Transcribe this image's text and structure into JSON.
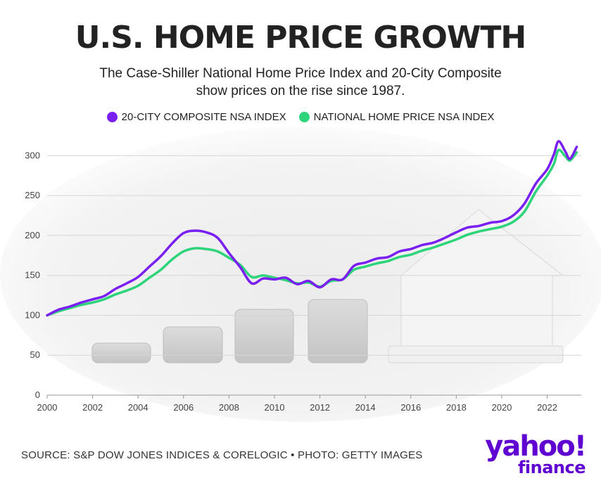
{
  "header": {
    "title": "U.S. HOME PRICE GROWTH",
    "subtitle": "The Case-Shiller National Home Price Index and 20-City Composite show prices on the rise since 1987."
  },
  "footer": {
    "source": "SOURCE: S&P DOW JONES INDICES & CORELOGIC • PHOTO: GETTY IMAGES",
    "logo_main": "yahoo!",
    "logo_sub": "finance"
  },
  "colors": {
    "composite": "#7a1ff2",
    "national": "#2ed47a",
    "brand": "#5f01d1"
  },
  "chart_data": {
    "type": "line",
    "xlabel": "",
    "ylabel": "",
    "xlim": [
      2000,
      2023.5
    ],
    "ylim": [
      0,
      325
    ],
    "xticks": [
      "2000",
      "2002",
      "2004",
      "2006",
      "2008",
      "2010",
      "2012",
      "2014",
      "2016",
      "2018",
      "2020",
      "2022"
    ],
    "yticks": [
      "0",
      "50",
      "100",
      "150",
      "200",
      "250",
      "300"
    ],
    "legend_position": "top",
    "grid": "horizontal",
    "series": [
      {
        "name": "20-CITY COMPOSITE NSA INDEX",
        "color": "#7a1ff2",
        "x": [
          2000,
          2000.5,
          2001,
          2001.5,
          2002,
          2002.5,
          2003,
          2003.5,
          2004,
          2004.5,
          2005,
          2005.5,
          2006,
          2006.5,
          2007,
          2007.5,
          2008,
          2008.5,
          2009,
          2009.5,
          2010,
          2010.5,
          2011,
          2011.5,
          2012,
          2012.5,
          2013,
          2013.5,
          2014,
          2014.5,
          2015,
          2015.5,
          2016,
          2016.5,
          2017,
          2017.5,
          2018,
          2018.5,
          2019,
          2019.5,
          2020,
          2020.5,
          2021,
          2021.5,
          2022,
          2022.3,
          2022.5,
          2022.8,
          2023,
          2023.3
        ],
        "y": [
          100,
          107,
          111,
          116,
          120,
          124,
          133,
          140,
          148,
          161,
          174,
          190,
          203,
          206,
          204,
          197,
          178,
          160,
          140,
          146,
          145,
          147,
          139,
          143,
          135,
          145,
          145,
          162,
          166,
          171,
          173,
          180,
          183,
          188,
          191,
          197,
          204,
          210,
          212,
          216,
          218,
          225,
          240,
          265,
          283,
          302,
          318,
          305,
          296,
          311
        ]
      },
      {
        "name": "NATIONAL HOME PRICE NSA INDEX",
        "color": "#2ed47a",
        "x": [
          2000,
          2000.5,
          2001,
          2001.5,
          2002,
          2002.5,
          2003,
          2003.5,
          2004,
          2004.5,
          2005,
          2005.5,
          2006,
          2006.5,
          2007,
          2007.5,
          2008,
          2008.5,
          2009,
          2009.5,
          2010,
          2010.5,
          2011,
          2011.5,
          2012,
          2012.5,
          2013,
          2013.5,
          2014,
          2014.5,
          2015,
          2015.5,
          2016,
          2016.5,
          2017,
          2017.5,
          2018,
          2018.5,
          2019,
          2019.5,
          2020,
          2020.5,
          2021,
          2021.5,
          2022,
          2022.3,
          2022.5,
          2022.8,
          2023,
          2023.3
        ],
        "y": [
          100,
          105,
          109,
          113,
          116,
          120,
          126,
          131,
          137,
          147,
          157,
          170,
          180,
          184,
          183,
          180,
          172,
          163,
          148,
          150,
          147,
          144,
          140,
          141,
          136,
          143,
          145,
          157,
          161,
          165,
          168,
          173,
          176,
          181,
          185,
          190,
          195,
          201,
          205,
          208,
          211,
          217,
          230,
          255,
          275,
          290,
          307,
          299,
          294,
          304
        ]
      }
    ]
  }
}
